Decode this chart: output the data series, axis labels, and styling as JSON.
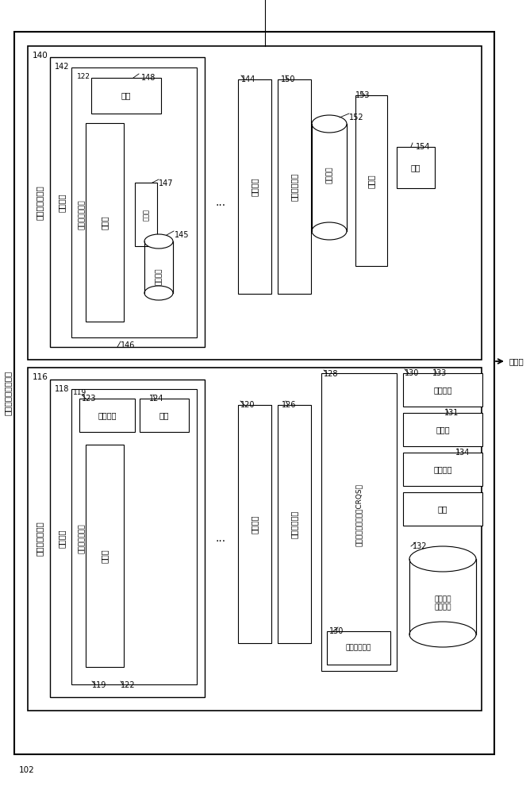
{
  "bg": "#ffffff",
  "lc": "#000000",
  "outer_system": "多租户工作负载系统",
  "upper_system": "多租户容量系统",
  "lower_system": "多租户管理系统",
  "network": "到网络",
  "t_qita": "其它",
  "t_chuliq": "处理器",
  "t_renzh_worker": "认证工作者组件",
  "t_bendi": "本地策略",
  "t_rongq": "容量机器",
  "t_renzh_front": "认证前端系统",
  "t_fuwuq": "服务器",
  "t_guanli": "管理机器",
  "t_crqs": "命令请求队列系统（CRQS）",
  "t_qianming": "签名验证组件",
  "t_qingqiu_queue": "请求队列",
  "t_approved": "已批准的\n请求队列",
  "nums": {
    "102": "102",
    "116": "116",
    "118": "118",
    "119": "119",
    "120": "120",
    "122": "122",
    "123": "123",
    "124": "124",
    "126": "126",
    "128": "128",
    "130a": "130",
    "130b": "130",
    "131": "131",
    "132": "132",
    "133": "133",
    "134": "134",
    "140": "140",
    "142": "142",
    "144": "144",
    "145": "145",
    "146": "146",
    "147": "147",
    "148": "148",
    "150": "150",
    "152": "152",
    "153": "153",
    "154": "154"
  }
}
